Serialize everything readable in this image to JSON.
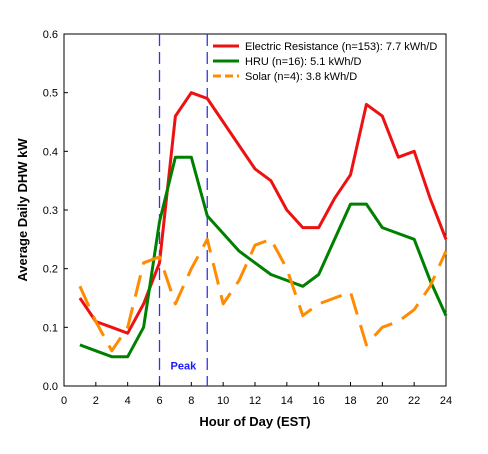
{
  "chart_data": {
    "type": "line",
    "title": "",
    "xlabel": "Hour of Day (EST)",
    "ylabel": "Average Daily DHW kW",
    "xlim": [
      0,
      24
    ],
    "ylim": [
      0,
      0.6
    ],
    "x_ticks": [
      0,
      2,
      4,
      6,
      8,
      10,
      12,
      14,
      16,
      18,
      20,
      22,
      24
    ],
    "y_ticks": [
      0.0,
      0.1,
      0.2,
      0.3,
      0.4,
      0.5,
      0.6
    ],
    "x_tick_labels": [
      "0",
      "2",
      "4",
      "6",
      "8",
      "10",
      "12",
      "14",
      "16",
      "18",
      "20",
      "22",
      "24"
    ],
    "y_tick_labels": [
      "0.0",
      "0.1",
      "0.2",
      "0.3",
      "0.4",
      "0.5",
      "0.6"
    ],
    "grid": false,
    "legend_position": "top-right",
    "x": [
      1,
      2,
      3,
      4,
      5,
      6,
      7,
      8,
      9,
      10,
      11,
      12,
      13,
      14,
      15,
      16,
      17,
      18,
      19,
      20,
      21,
      22,
      23,
      24
    ],
    "series": [
      {
        "name": "Electric Resistance (n=153): 7.7 kWh/D",
        "color": "#ee1111",
        "dash": "solid",
        "values": [
          0.15,
          0.11,
          0.1,
          0.09,
          0.14,
          0.21,
          0.46,
          0.5,
          0.49,
          0.45,
          0.41,
          0.37,
          0.35,
          0.3,
          0.27,
          0.27,
          0.32,
          0.36,
          0.48,
          0.46,
          0.39,
          0.4,
          0.32,
          0.25
        ]
      },
      {
        "name": "HRU (n=16): 5.1 kWh/D",
        "color": "#008000",
        "dash": "solid",
        "values": [
          0.07,
          0.06,
          0.05,
          0.05,
          0.1,
          0.28,
          0.39,
          0.39,
          0.29,
          0.26,
          0.23,
          0.21,
          0.19,
          0.18,
          0.17,
          0.19,
          0.25,
          0.31,
          0.31,
          0.27,
          0.26,
          0.25,
          0.18,
          0.12
        ]
      },
      {
        "name": "Solar (n=4): 3.8 kWh/D",
        "color": "#ff8c00",
        "dash": "dashed",
        "values": [
          0.17,
          0.11,
          0.06,
          0.1,
          0.21,
          0.22,
          0.14,
          0.2,
          0.25,
          0.14,
          0.18,
          0.24,
          0.25,
          0.2,
          0.12,
          0.14,
          0.15,
          0.16,
          0.07,
          0.1,
          0.11,
          0.13,
          0.17,
          0.23
        ]
      }
    ],
    "vertical_lines": [
      {
        "x": 6,
        "color": "#3333ee"
      },
      {
        "x": 9,
        "color": "#3333ee"
      }
    ],
    "annotations": [
      {
        "text": "Peak",
        "x": 7.5,
        "y": 0.035,
        "color": "#1a1aff"
      }
    ]
  }
}
